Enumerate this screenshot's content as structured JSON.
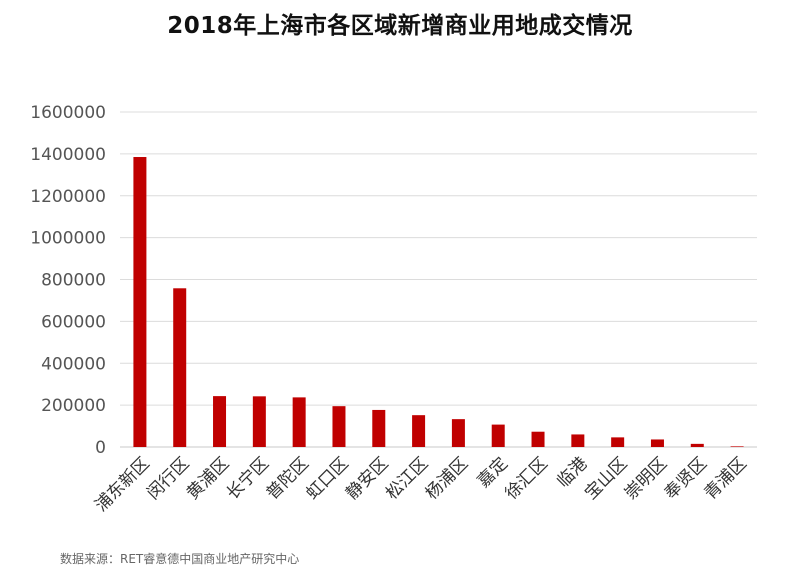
{
  "chart_data": {
    "type": "bar",
    "title": "2018年上海市各区域新增商业用地成交情况",
    "xlabel": "",
    "ylabel": "",
    "categories": [
      "浦东新区",
      "闵行区",
      "黄浦区",
      "长宁区",
      "普陀区",
      "虹口区",
      "静安区",
      "松江区",
      "杨浦区",
      "嘉定",
      "徐汇区",
      "临港",
      "宝山区",
      "崇明区",
      "奉贤区",
      "青浦区"
    ],
    "values": [
      1385000,
      758000,
      243000,
      242000,
      237000,
      195000,
      177000,
      152000,
      133000,
      107000,
      73000,
      60000,
      46000,
      36000,
      15000,
      3000
    ],
    "ylim": [
      0,
      1600000
    ],
    "yticks": [
      "0",
      "200000",
      "400000",
      "600000",
      "800000",
      "1000000",
      "1200000",
      "1400000",
      "1600000"
    ],
    "grid": true,
    "legend": "none",
    "bar_color": "#C00000"
  },
  "source": "数据来源：RET睿意德中国商业地产研究中心"
}
